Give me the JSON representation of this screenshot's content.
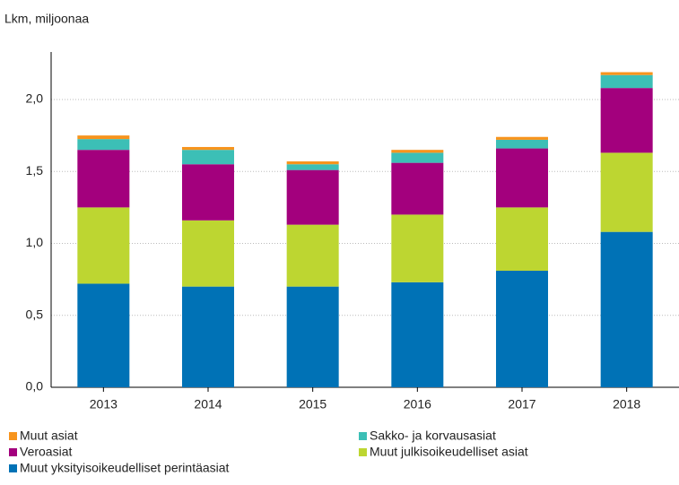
{
  "chart_data": {
    "type": "stacked_bar",
    "y_label": "Lkm, miljoonaa",
    "categories": [
      "2013",
      "2014",
      "2015",
      "2016",
      "2017",
      "2018"
    ],
    "series": [
      {
        "name": "Muut yksityisoikeudelliset perintäasiat",
        "color": "#0072b6",
        "values": [
          0.72,
          0.7,
          0.7,
          0.73,
          0.81,
          1.08
        ]
      },
      {
        "name": "Muut julkisoikeudelliset asiat",
        "color": "#bdd631",
        "values": [
          0.53,
          0.46,
          0.43,
          0.47,
          0.44,
          0.55
        ]
      },
      {
        "name": "Veroasiat",
        "color": "#a3007d",
        "values": [
          0.4,
          0.39,
          0.38,
          0.36,
          0.41,
          0.45
        ]
      },
      {
        "name": "Sakko- ja korvausasiat",
        "color": "#3cbfb6",
        "values": [
          0.075,
          0.1,
          0.04,
          0.07,
          0.06,
          0.09
        ]
      },
      {
        "name": "Muut asiat",
        "color": "#f7941d",
        "values": [
          0.025,
          0.02,
          0.02,
          0.02,
          0.02,
          0.02
        ]
      }
    ],
    "ylim": [
      0,
      2.2
    ],
    "yticks": [
      {
        "value": 0,
        "label": "0,0"
      },
      {
        "value": 0.5,
        "label": "0,5"
      },
      {
        "value": 1,
        "label": "1,0"
      },
      {
        "value": 1.5,
        "label": "1,5"
      },
      {
        "value": 2,
        "label": "2,0"
      }
    ],
    "grid": true
  }
}
